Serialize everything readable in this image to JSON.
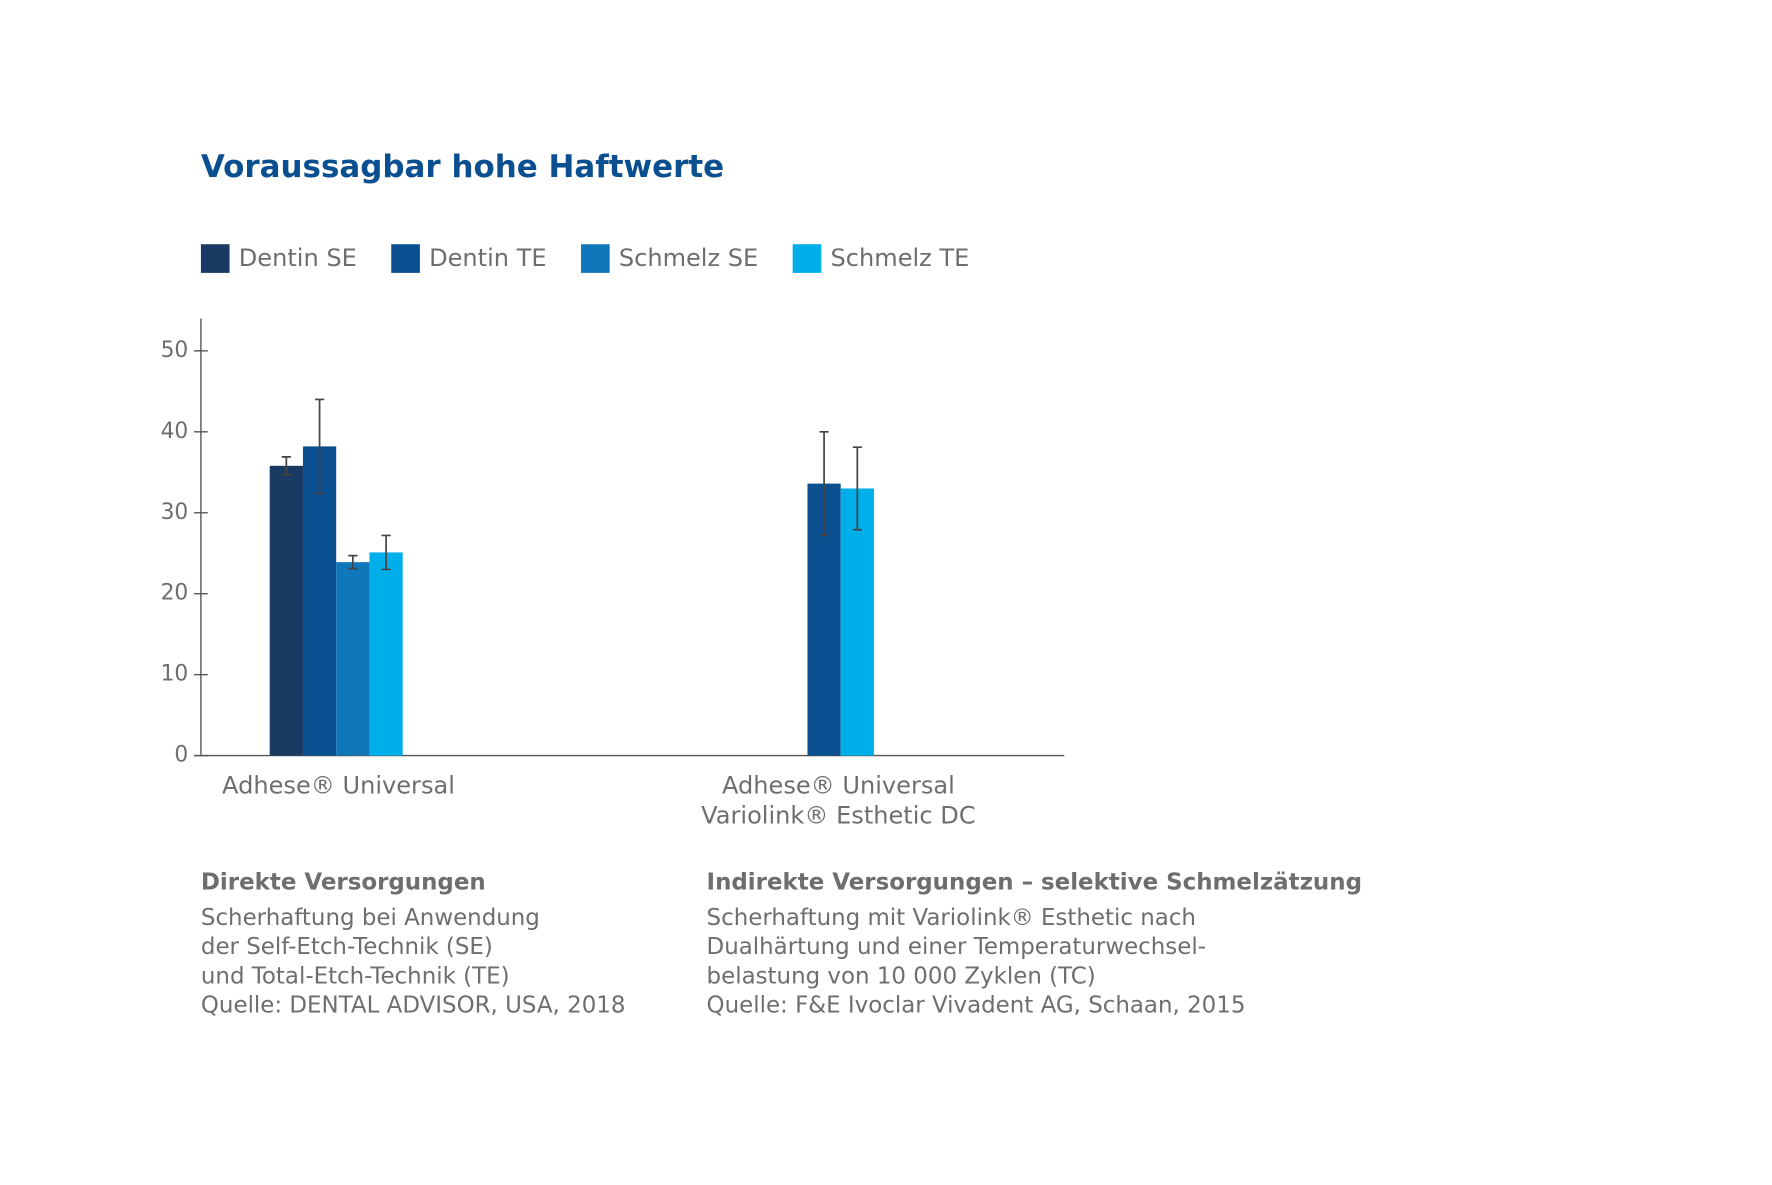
{
  "chart_data": {
    "type": "bar",
    "title": "Voraussagbar hohe Haftwerte",
    "categories": [
      [
        "Adhese® Universal"
      ],
      [
        "Adhese® Universal",
        "Variolink® Esthetic DC"
      ]
    ],
    "series": [
      {
        "name": "Dentin SE",
        "color": "#1a3a64",
        "values": [
          35.8,
          null
        ],
        "errors": [
          1.1,
          null
        ]
      },
      {
        "name": "Dentin TE",
        "color": "#0a4f8f",
        "values": [
          38.2,
          33.6
        ],
        "errors": [
          5.8,
          6.4
        ]
      },
      {
        "name": "Schmelz SE",
        "color": "#1177bb",
        "values": [
          23.9,
          null
        ],
        "errors": [
          0.8,
          null
        ]
      },
      {
        "name": "Schmelz TE",
        "color": "#00aeea",
        "values": [
          25.1,
          33.0
        ],
        "errors": [
          2.1,
          5.1
        ]
      }
    ],
    "ylim": [
      0,
      54
    ],
    "yticks": [
      0,
      10,
      20,
      30,
      40,
      50
    ],
    "notes": [
      {
        "heading": "Direkte Versorgungen",
        "lines": [
          "Scherhaftung bei Anwendung",
          "der Self-Etch-Technik (SE)",
          "und Total-Etch-Technik (TE)",
          "Quelle: DENTAL ADVISOR, USA, 2018"
        ]
      },
      {
        "heading": "Indirekte Versorgungen – selektive Schmelzätzung",
        "lines": [
          "Scherhaftung mit Variolink® Esthetic nach",
          "Dualhärtung und einer Temperaturwechsel-",
          "belastung von 10 000 Zyklen (TC)",
          "Quelle: F&E Ivoclar Vivadent AG, Schaan, 2015"
        ]
      }
    ]
  }
}
